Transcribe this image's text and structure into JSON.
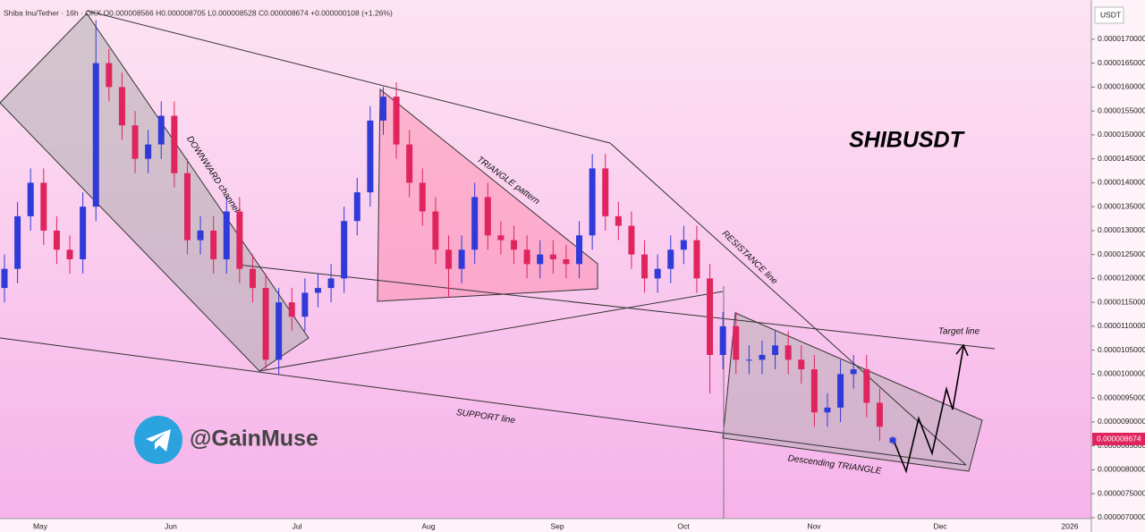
{
  "chart_data": {
    "type": "candlestick",
    "title": "SHIBUSDT",
    "legend_text": "Shiba Inu/Tether · 16h · OKX  O0.000008566 H0.000008705 L0.000008528 C0.000008674 +0.000000108 (+1.26%)",
    "axis_unit": "USDT",
    "last_price_label": "0.000008674",
    "watermark": "@GainMuse",
    "annotations": [
      "DOWNWARD channel",
      "TRIANGLE pattern",
      "RESISTANCE line",
      "SUPPORT line",
      "Target line",
      "Descending TRIANGLE"
    ],
    "x_labels": [
      "May",
      "Jun",
      "Jul",
      "Aug",
      "Sep",
      "Oct",
      "Nov",
      "Dec",
      "2026"
    ],
    "up_color": "#2f3ad8",
    "down_color": "#e0245e",
    "ylim": [
      6.98e-06,
      1.782e-05
    ],
    "yticks": [
      {
        "value": 7e-06,
        "label": "0.0000070000"
      },
      {
        "value": 7.5e-06,
        "label": "0.0000075000"
      },
      {
        "value": 8e-06,
        "label": "0.0000080000"
      },
      {
        "value": 8.5e-06,
        "label": "0.0000085000"
      },
      {
        "value": 9e-06,
        "label": "0.0000090000"
      },
      {
        "value": 9.5e-06,
        "label": "0.0000095000"
      },
      {
        "value": 1e-05,
        "label": "0.0000100000"
      },
      {
        "value": 1.05e-05,
        "label": "0.0000105000"
      },
      {
        "value": 1.1e-05,
        "label": "0.0000110000"
      },
      {
        "value": 1.15e-05,
        "label": "0.0000115000"
      },
      {
        "value": 1.2e-05,
        "label": "0.0000120000"
      },
      {
        "value": 1.25e-05,
        "label": "0.0000125000"
      },
      {
        "value": 1.3e-05,
        "label": "0.0000130000"
      },
      {
        "value": 1.35e-05,
        "label": "0.0000135000"
      },
      {
        "value": 1.4e-05,
        "label": "0.0000140000"
      },
      {
        "value": 1.45e-05,
        "label": "0.0000145000"
      },
      {
        "value": 1.5e-05,
        "label": "0.0000150000"
      },
      {
        "value": 1.55e-05,
        "label": "0.0000155000"
      },
      {
        "value": 1.6e-05,
        "label": "0.0000160000"
      },
      {
        "value": 1.65e-05,
        "label": "0.0000165000"
      },
      {
        "value": 1.7e-05,
        "label": "0.0000170000"
      }
    ],
    "open": [
      1.18e-05,
      1.22e-05,
      1.33e-05,
      1.4e-05,
      1.3e-05,
      1.26e-05,
      1.24e-05,
      1.35e-05,
      1.65e-05,
      1.6e-05,
      1.52e-05,
      1.45e-05,
      1.48e-05,
      1.54e-05,
      1.42e-05,
      1.28e-05,
      1.3e-05,
      1.24e-05,
      1.34e-05,
      1.22e-05,
      1.18e-05,
      1.03e-05,
      1.15e-05,
      1.12e-05,
      1.17e-05,
      1.18e-05,
      1.2e-05,
      1.32e-05,
      1.38e-05,
      1.53e-05,
      1.58e-05,
      1.48e-05,
      1.4e-05,
      1.34e-05,
      1.26e-05,
      1.22e-05,
      1.26e-05,
      1.37e-05,
      1.29e-05,
      1.28e-05,
      1.26e-05,
      1.23e-05,
      1.25e-05,
      1.24e-05,
      1.23e-05,
      1.29e-05,
      1.43e-05,
      1.33e-05,
      1.31e-05,
      1.25e-05,
      1.2e-05,
      1.22e-05,
      1.26e-05,
      1.28e-05,
      1.2e-05,
      1.04e-05,
      1.1e-05,
      1.03e-05,
      1.03e-05,
      1.04e-05,
      1.06e-05,
      1.03e-05,
      1.01e-05,
      9.2e-06,
      9.3e-06,
      1e-05,
      1.01e-05,
      9.4e-06,
      8.566e-06
    ],
    "high": [
      1.25e-05,
      1.36e-05,
      1.43e-05,
      1.43e-05,
      1.33e-05,
      1.29e-05,
      1.38e-05,
      1.74e-05,
      1.68e-05,
      1.63e-05,
      1.55e-05,
      1.51e-05,
      1.57e-05,
      1.57e-05,
      1.45e-05,
      1.33e-05,
      1.33e-05,
      1.37e-05,
      1.37e-05,
      1.25e-05,
      1.21e-05,
      1.18e-05,
      1.18e-05,
      1.2e-05,
      1.21e-05,
      1.23e-05,
      1.35e-05,
      1.41e-05,
      1.56e-05,
      1.6e-05,
      1.61e-05,
      1.51e-05,
      1.43e-05,
      1.37e-05,
      1.29e-05,
      1.29e-05,
      1.4e-05,
      1.4e-05,
      1.32e-05,
      1.31e-05,
      1.29e-05,
      1.28e-05,
      1.28e-05,
      1.27e-05,
      1.32e-05,
      1.46e-05,
      1.46e-05,
      1.36e-05,
      1.34e-05,
      1.28e-05,
      1.25e-05,
      1.29e-05,
      1.31e-05,
      1.31e-05,
      1.23e-05,
      1.13e-05,
      1.13e-05,
      1.06e-05,
      1.07e-05,
      1.09e-05,
      1.09e-05,
      1.06e-05,
      1.04e-05,
      9.6e-06,
      1.03e-05,
      1.04e-05,
      1.04e-05,
      9.7e-06,
      8.705e-06
    ],
    "low": [
      1.15e-05,
      1.19e-05,
      1.3e-05,
      1.27e-05,
      1.23e-05,
      1.21e-05,
      1.21e-05,
      1.32e-05,
      1.57e-05,
      1.49e-05,
      1.42e-05,
      1.42e-05,
      1.45e-05,
      1.39e-05,
      1.25e-05,
      1.25e-05,
      1.21e-05,
      1.21e-05,
      1.19e-05,
      1.15e-05,
      1.01e-05,
      1e-05,
      1.09e-05,
      1.09e-05,
      1.14e-05,
      1.15e-05,
      1.17e-05,
      1.29e-05,
      1.35e-05,
      1.5e-05,
      1.45e-05,
      1.37e-05,
      1.31e-05,
      1.23e-05,
      1.16e-05,
      1.19e-05,
      1.23e-05,
      1.26e-05,
      1.25e-05,
      1.23e-05,
      1.2e-05,
      1.2e-05,
      1.21e-05,
      1.2e-05,
      1.2e-05,
      1.26e-05,
      1.3e-05,
      1.28e-05,
      1.22e-05,
      1.17e-05,
      1.17e-05,
      1.19e-05,
      1.23e-05,
      1.17e-05,
      9.6e-06,
      1.01e-05,
      1e-05,
      1e-05,
      1e-05,
      1.01e-05,
      1e-05,
      9.8e-06,
      8.9e-06,
      8.9e-06,
      9e-06,
      9.7e-06,
      9.1e-06,
      8.6e-06,
      8.528e-06
    ],
    "close": [
      1.22e-05,
      1.33e-05,
      1.4e-05,
      1.3e-05,
      1.26e-05,
      1.24e-05,
      1.35e-05,
      1.65e-05,
      1.6e-05,
      1.52e-05,
      1.45e-05,
      1.48e-05,
      1.54e-05,
      1.42e-05,
      1.28e-05,
      1.3e-05,
      1.24e-05,
      1.34e-05,
      1.22e-05,
      1.18e-05,
      1.03e-05,
      1.15e-05,
      1.12e-05,
      1.17e-05,
      1.18e-05,
      1.2e-05,
      1.32e-05,
      1.38e-05,
      1.53e-05,
      1.58e-05,
      1.48e-05,
      1.4e-05,
      1.34e-05,
      1.26e-05,
      1.22e-05,
      1.26e-05,
      1.37e-05,
      1.29e-05,
      1.28e-05,
      1.26e-05,
      1.23e-05,
      1.25e-05,
      1.24e-05,
      1.23e-05,
      1.29e-05,
      1.43e-05,
      1.33e-05,
      1.31e-05,
      1.25e-05,
      1.2e-05,
      1.22e-05,
      1.26e-05,
      1.28e-05,
      1.2e-05,
      1.04e-05,
      1.1e-05,
      1.03e-05,
      1.03e-05,
      1.04e-05,
      1.06e-05,
      1.03e-05,
      1.01e-05,
      9.2e-06,
      9.3e-06,
      1e-05,
      1.01e-05,
      9.4e-06,
      8.9e-06,
      8.674e-06
    ]
  }
}
